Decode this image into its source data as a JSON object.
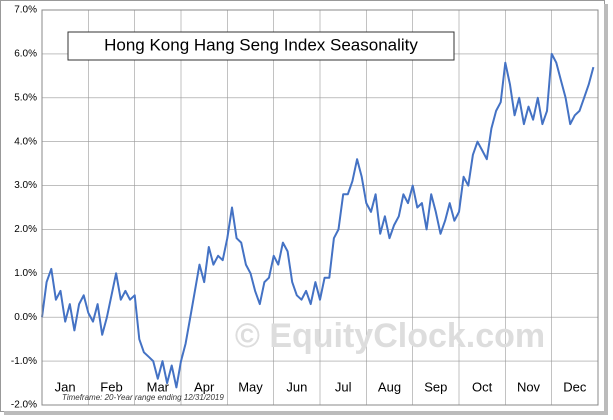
{
  "chart_data": {
    "type": "line",
    "title": "Hong Kong Hang Seng Index Seasonality",
    "footnote": "Timeframe: 20-Year range ending 12/31/2019",
    "watermark": "© EquityClock.com",
    "xlim": [
      0,
      12
    ],
    "xticks": [
      {
        "value": 0.5,
        "label": "Jan"
      },
      {
        "value": 1.5,
        "label": "Feb"
      },
      {
        "value": 2.5,
        "label": "Mar"
      },
      {
        "value": 3.5,
        "label": "Apr"
      },
      {
        "value": 4.5,
        "label": "May"
      },
      {
        "value": 5.5,
        "label": "Jun"
      },
      {
        "value": 6.5,
        "label": "Jul"
      },
      {
        "value": 7.5,
        "label": "Aug"
      },
      {
        "value": 8.5,
        "label": "Sep"
      },
      {
        "value": 9.5,
        "label": "Oct"
      },
      {
        "value": 10.5,
        "label": "Nov"
      },
      {
        "value": 11.5,
        "label": "Dec"
      }
    ],
    "ylim": [
      -2,
      7
    ],
    "yticks": [
      {
        "value": -2,
        "label": "-2.0%"
      },
      {
        "value": -1,
        "label": "-1.0%"
      },
      {
        "value": 0,
        "label": "0.0%"
      },
      {
        "value": 1,
        "label": "1.0%"
      },
      {
        "value": 2,
        "label": "2.0%"
      },
      {
        "value": 3,
        "label": "3.0%"
      },
      {
        "value": 4,
        "label": "4.0%"
      },
      {
        "value": 5,
        "label": "5.0%"
      },
      {
        "value": 6,
        "label": "6.0%"
      },
      {
        "value": 7,
        "label": "7.0%"
      }
    ],
    "grid": true,
    "color": "#4472c4",
    "x": [
      0,
      0.1,
      0.2,
      0.3,
      0.4,
      0.5,
      0.6,
      0.7,
      0.8,
      0.9,
      1,
      1.1,
      1.2,
      1.3,
      1.4,
      1.5,
      1.6,
      1.7,
      1.8,
      1.9,
      2,
      2.1,
      2.2,
      2.3,
      2.4,
      2.5,
      2.6,
      2.7,
      2.8,
      2.9,
      3,
      3.1,
      3.2,
      3.3,
      3.4,
      3.5,
      3.6,
      3.7,
      3.8,
      3.9,
      4,
      4.1,
      4.2,
      4.3,
      4.4,
      4.5,
      4.6,
      4.7,
      4.8,
      4.9,
      5,
      5.1,
      5.2,
      5.3,
      5.4,
      5.5,
      5.6,
      5.7,
      5.8,
      5.9,
      6,
      6.1,
      6.2,
      6.3,
      6.4,
      6.5,
      6.6,
      6.7,
      6.8,
      6.9,
      7,
      7.1,
      7.2,
      7.3,
      7.4,
      7.5,
      7.6,
      7.7,
      7.8,
      7.9,
      8,
      8.1,
      8.2,
      8.3,
      8.4,
      8.5,
      8.6,
      8.7,
      8.8,
      8.9,
      9,
      9.1,
      9.2,
      9.3,
      9.4,
      9.5,
      9.6,
      9.7,
      9.8,
      9.9,
      10,
      10.1,
      10.2,
      10.3,
      10.4,
      10.5,
      10.6,
      10.7,
      10.8,
      10.9,
      11,
      11.1,
      11.2,
      11.3,
      11.4,
      11.5,
      11.6,
      11.7,
      11.8,
      11.9
    ],
    "values": [
      0.0,
      0.8,
      1.1,
      0.4,
      0.6,
      -0.1,
      0.3,
      -0.3,
      0.3,
      0.5,
      0.1,
      -0.1,
      0.3,
      -0.4,
      0.0,
      0.5,
      1.0,
      0.4,
      0.6,
      0.4,
      0.5,
      -0.5,
      -0.8,
      -0.9,
      -1.0,
      -1.4,
      -1.0,
      -1.5,
      -1.1,
      -1.6,
      -1.0,
      -0.6,
      0.0,
      0.6,
      1.2,
      0.8,
      1.6,
      1.2,
      1.4,
      1.3,
      1.8,
      2.5,
      1.8,
      1.7,
      1.2,
      1.0,
      0.6,
      0.3,
      0.8,
      0.9,
      1.4,
      1.2,
      1.7,
      1.5,
      0.8,
      0.5,
      0.4,
      0.6,
      0.3,
      0.8,
      0.4,
      0.9,
      0.9,
      1.8,
      2.0,
      2.8,
      2.8,
      3.1,
      3.6,
      3.2,
      2.6,
      2.4,
      2.8,
      1.9,
      2.3,
      1.8,
      2.1,
      2.3,
      2.8,
      2.6,
      3.0,
      2.5,
      2.6,
      2.0,
      2.8,
      2.4,
      1.9,
      2.2,
      2.6,
      2.2,
      2.4,
      3.2,
      3.0,
      3.7,
      4.0,
      3.8,
      3.6,
      4.3,
      4.7,
      4.9,
      5.8,
      5.3,
      4.6,
      5.0,
      4.4,
      4.8,
      4.5,
      5.0,
      4.4,
      4.7,
      6.0,
      5.8,
      5.4,
      5.0,
      4.4,
      4.6,
      4.7,
      5.0,
      5.3,
      5.7
    ]
  }
}
